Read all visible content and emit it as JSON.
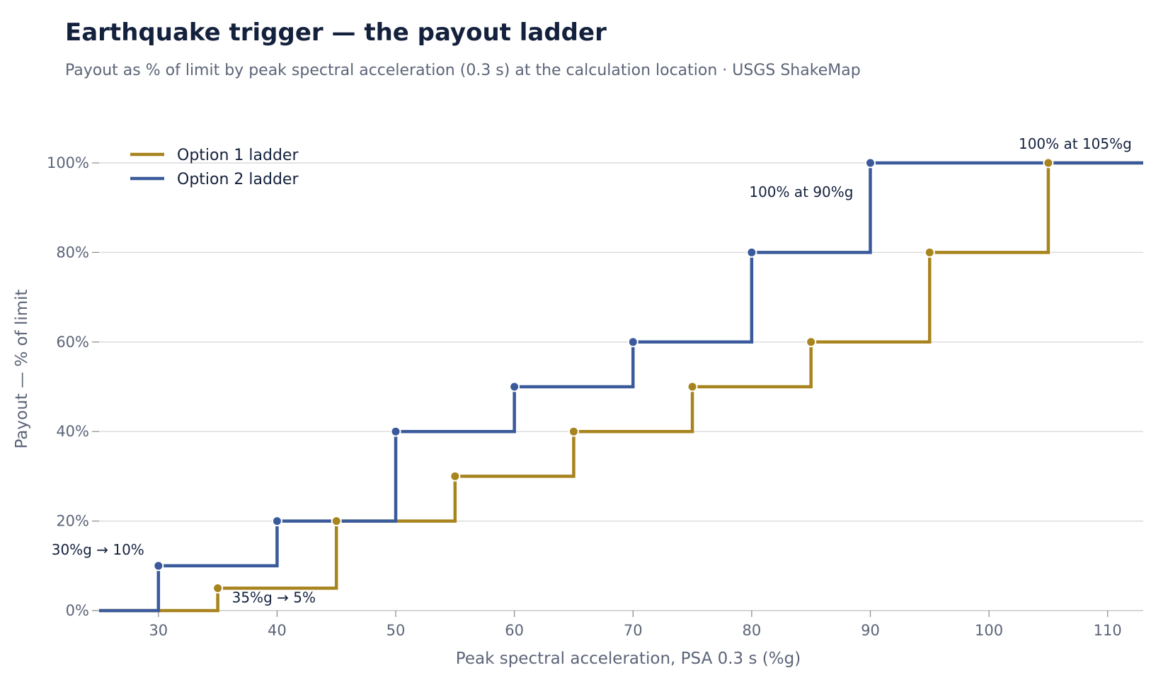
{
  "title": "Earthquake trigger — the payout ladder",
  "subtitle": "Payout as % of limit by peak spectral acceleration (0.3 s) at the calculation location · USGS ShakeMap",
  "chart_data": {
    "type": "line",
    "step": "post",
    "xlabel": "Peak spectral acceleration, PSA 0.3 s (%g)",
    "ylabel": "Payout — % of limit",
    "xlim": [
      25,
      113
    ],
    "ylim": [
      0,
      100
    ],
    "x_ticks": [
      30,
      40,
      50,
      60,
      70,
      80,
      90,
      100,
      110
    ],
    "y_ticks": [
      0,
      20,
      40,
      60,
      80,
      100
    ],
    "y_tick_labels": [
      "0%",
      "20%",
      "40%",
      "60%",
      "80%",
      "100%"
    ],
    "grid": "horizontal",
    "legend_position": "top-left",
    "series": [
      {
        "name": "Option 1 ladder",
        "color": "#a8841e",
        "x": [
          35,
          45,
          55,
          65,
          75,
          85,
          95,
          105
        ],
        "y": [
          5,
          20,
          30,
          40,
          50,
          60,
          80,
          100
        ]
      },
      {
        "name": "Option 2 ladder",
        "color": "#3a5a9b",
        "x": [
          30,
          40,
          50,
          60,
          70,
          80,
          90
        ],
        "y": [
          10,
          20,
          40,
          50,
          60,
          80,
          100
        ]
      }
    ],
    "annotations": [
      {
        "text": "30%g → 10%",
        "series": 1,
        "point": 0,
        "anchor": "end"
      },
      {
        "text": "35%g → 5%",
        "series": 0,
        "point": 0,
        "anchor": "start"
      },
      {
        "text": "100% at 90%g",
        "series": 1,
        "point": 6,
        "anchor": "end"
      },
      {
        "text": "100% at 105%g",
        "series": 0,
        "point": 7,
        "anchor": "middle"
      }
    ]
  }
}
